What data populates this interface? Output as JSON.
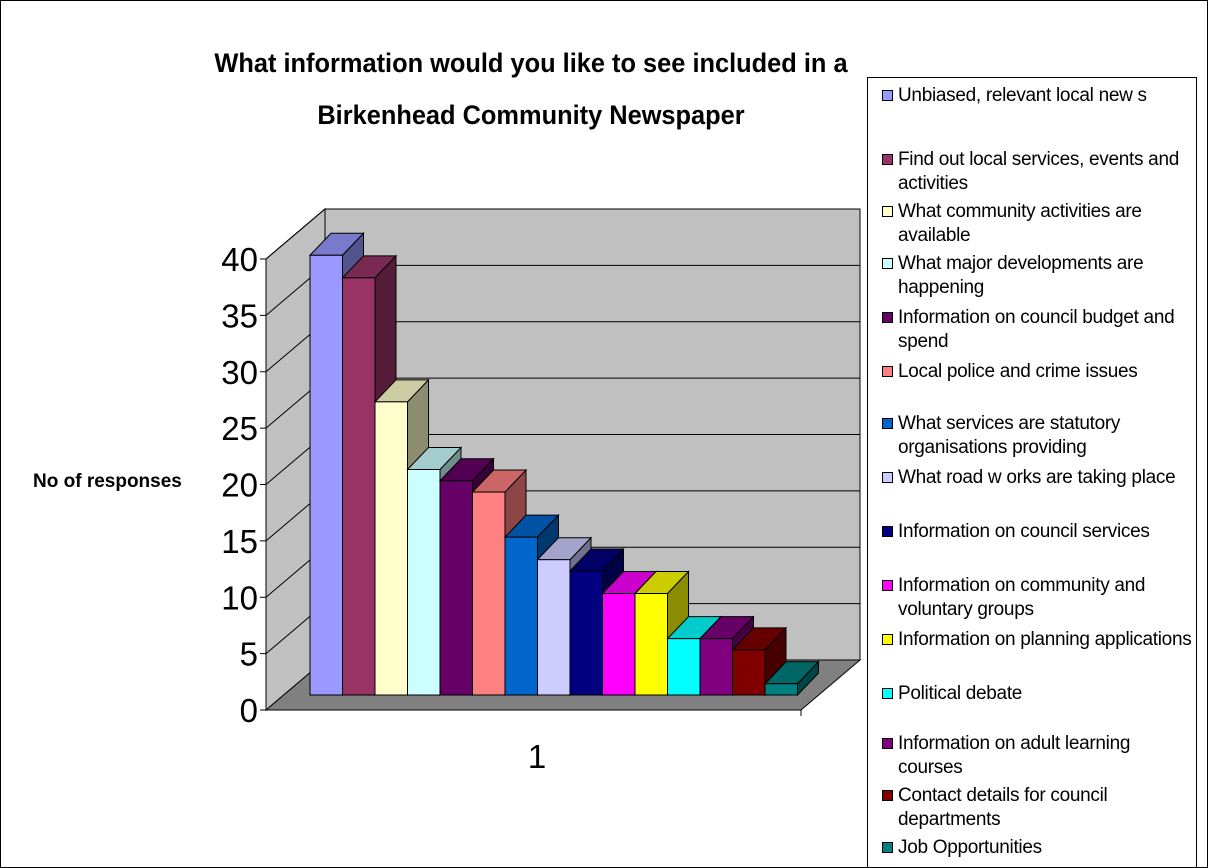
{
  "chart_data": {
    "type": "bar",
    "style": "3d-column",
    "title": "What information would you like to see included in a Birkenhead Community Newspaper",
    "xlabel": "",
    "ylabel": "No of responses",
    "categories": [
      "1"
    ],
    "ylim": [
      0,
      40
    ],
    "yticks": [
      "0",
      "5",
      "10",
      "15",
      "20",
      "25",
      "30",
      "35",
      "40"
    ],
    "grid": true,
    "legend_position": "right",
    "series": [
      {
        "name": "Unbiased, relevant local new s",
        "values": [
          39
        ],
        "color": "#9999FF"
      },
      {
        "name": "Find out local services, events and activities",
        "values": [
          37
        ],
        "color": "#993366"
      },
      {
        "name": "What community activities are available",
        "values": [
          26
        ],
        "color": "#FFFFCC"
      },
      {
        "name": "What major developments are happening",
        "values": [
          20
        ],
        "color": "#CCFFFF"
      },
      {
        "name": "Information on council budget and spend",
        "values": [
          19
        ],
        "color": "#660066"
      },
      {
        "name": "Local police and crime issues",
        "values": [
          18
        ],
        "color": "#FF8080"
      },
      {
        "name": "What services are statutory organisations providing",
        "values": [
          14
        ],
        "color": "#0066CC"
      },
      {
        "name": "What road w orks are taking place",
        "values": [
          12
        ],
        "color": "#CCCCFF"
      },
      {
        "name": "Information on council services",
        "values": [
          11
        ],
        "color": "#000080"
      },
      {
        "name": "Information on community and voluntary groups",
        "values": [
          9
        ],
        "color": "#FF00FF"
      },
      {
        "name": "Information on planning applications",
        "values": [
          9
        ],
        "color": "#FFFF00"
      },
      {
        "name": "Political debate",
        "values": [
          5
        ],
        "color": "#00FFFF"
      },
      {
        "name": "Information on adult learning courses",
        "values": [
          5
        ],
        "color": "#800080"
      },
      {
        "name": "Contact details for council departments",
        "values": [
          4
        ],
        "color": "#800000"
      },
      {
        "name": "Job Opportunities",
        "values": [
          1
        ],
        "color": "#008080"
      }
    ]
  }
}
